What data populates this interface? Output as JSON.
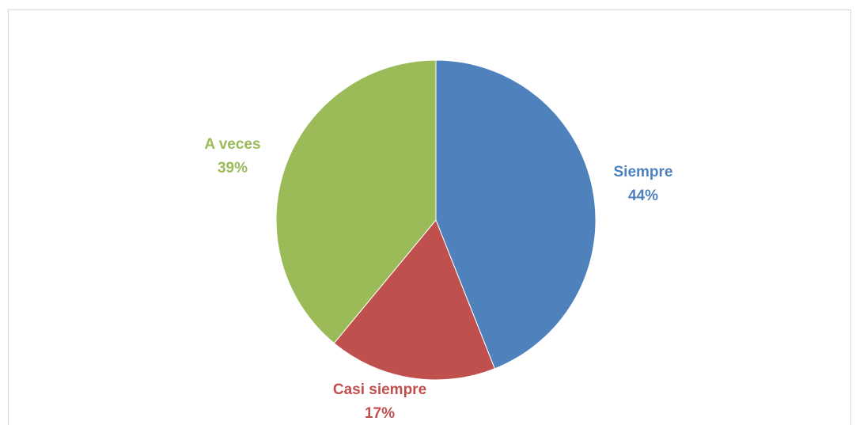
{
  "chart_data": {
    "type": "pie",
    "categories": [
      "Siempre",
      "Casi siempre",
      "A veces"
    ],
    "values": [
      44,
      17,
      39
    ],
    "value_labels": [
      "44%",
      "17%",
      "39%"
    ],
    "colors": [
      "#4f81bd",
      "#c0504d",
      "#9bbb59"
    ]
  }
}
